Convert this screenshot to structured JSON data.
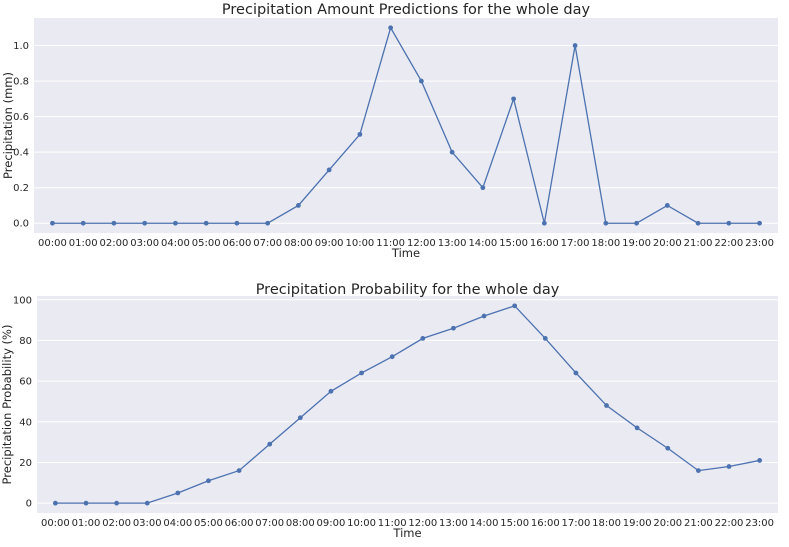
{
  "chart_data": [
    {
      "type": "line",
      "title": "Precipitation Amount Predictions for the whole day",
      "xlabel": "Time",
      "ylabel": "Precipitation (mm)",
      "categories": [
        "00:00",
        "01:00",
        "02:00",
        "03:00",
        "04:00",
        "05:00",
        "06:00",
        "07:00",
        "08:00",
        "09:00",
        "10:00",
        "11:00",
        "12:00",
        "13:00",
        "14:00",
        "15:00",
        "16:00",
        "17:00",
        "18:00",
        "19:00",
        "20:00",
        "21:00",
        "22:00",
        "23:00"
      ],
      "values": [
        0,
        0,
        0,
        0,
        0,
        0,
        0,
        0,
        0.1,
        0.3,
        0.5,
        1.1,
        0.8,
        0.4,
        0.2,
        0.7,
        0,
        1.0,
        0,
        0,
        0.1,
        0,
        0,
        0
      ],
      "yticks": [
        0.0,
        0.2,
        0.4,
        0.6,
        0.8,
        1.0
      ],
      "ytick_labels": [
        "0.0",
        "0.2",
        "0.4",
        "0.6",
        "0.8",
        "1.0"
      ],
      "ylim": [
        -0.055,
        1.155
      ],
      "grid": true,
      "color": "#4c72b0",
      "background": "#eaeaf2"
    },
    {
      "type": "line",
      "title": "Precipitation Probability for the whole day",
      "xlabel": "Time",
      "ylabel": "Precipitation Probability (%)",
      "categories": [
        "00:00",
        "01:00",
        "02:00",
        "03:00",
        "04:00",
        "05:00",
        "06:00",
        "07:00",
        "08:00",
        "09:00",
        "10:00",
        "11:00",
        "12:00",
        "13:00",
        "14:00",
        "15:00",
        "16:00",
        "17:00",
        "18:00",
        "19:00",
        "20:00",
        "21:00",
        "22:00",
        "23:00"
      ],
      "values": [
        0,
        0,
        0,
        0,
        5,
        11,
        16,
        29,
        42,
        55,
        64,
        72,
        81,
        86,
        92,
        97,
        81,
        64,
        48,
        37,
        27,
        16,
        18,
        21
      ],
      "yticks": [
        0,
        20,
        40,
        60,
        80,
        100
      ],
      "ytick_labels": [
        "0",
        "20",
        "40",
        "60",
        "80",
        "100"
      ],
      "ylim": [
        -4.85,
        101.85
      ],
      "grid": true,
      "color": "#4c72b0",
      "background": "#eaeaf2"
    }
  ]
}
